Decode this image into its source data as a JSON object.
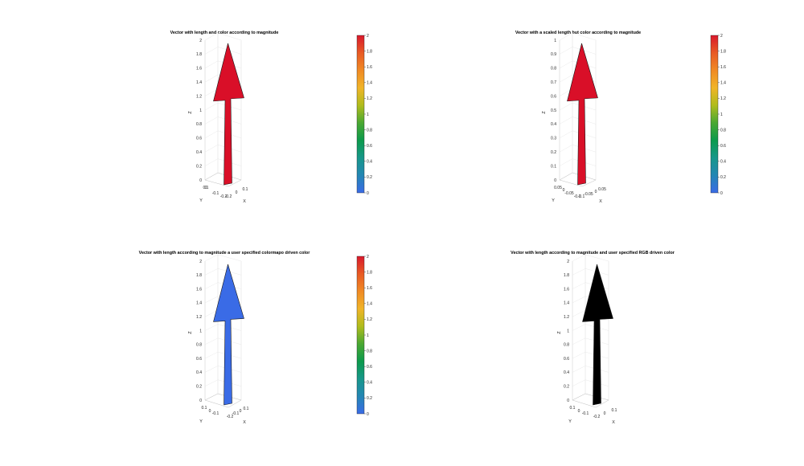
{
  "figure": {
    "background": "#ffffff"
  },
  "chart_data": [
    {
      "type": "3d-quiver",
      "title": "Vector with length and color according to magnitude",
      "xlabel": "X",
      "ylabel": "Y",
      "zlabel": "Z",
      "zlim": [
        0,
        2
      ],
      "z_ticks": [
        "0",
        "0.2",
        "0.4",
        "0.6",
        "0.8",
        "1",
        "1.2",
        "1.4",
        "1.6",
        "1.8",
        "2"
      ],
      "x_ticks": [
        "-0.2",
        "0",
        "0.1"
      ],
      "y_ticks": [
        "-0.2",
        "-0.1",
        "0",
        "0.1"
      ],
      "vector": {
        "origin": [
          0,
          0,
          0
        ],
        "direction": [
          0,
          0,
          1
        ],
        "magnitude": 2,
        "drawn_length": 2
      },
      "arrow_color": "#d90f28",
      "colorbar": {
        "clim": [
          0,
          2
        ],
        "ticks": [
          "0",
          "0.2",
          "0.4",
          "0.6",
          "0.8",
          "1",
          "1.2",
          "1.4",
          "1.6",
          "1.8",
          "2"
        ]
      }
    },
    {
      "type": "3d-quiver",
      "title": "Vector with a scaled length but color according to magnitude",
      "xlabel": "X",
      "ylabel": "Y",
      "zlabel": "Z",
      "zlim": [
        0,
        1
      ],
      "z_ticks": [
        "0",
        "0.1",
        "0.2",
        "0.3",
        "0.4",
        "0.5",
        "0.6",
        "0.7",
        "0.8",
        "0.9",
        "1"
      ],
      "x_ticks": [
        "-0.1",
        "-0.05",
        "0",
        "0.05"
      ],
      "y_ticks": [
        "-0.1",
        "-0.05",
        "0",
        "0.05"
      ],
      "vector": {
        "origin": [
          0,
          0,
          0
        ],
        "direction": [
          0,
          0,
          1
        ],
        "magnitude": 2,
        "drawn_length": 1
      },
      "arrow_color": "#d90f28",
      "colorbar": {
        "clim": [
          0,
          2
        ],
        "ticks": [
          "0",
          "0.2",
          "0.4",
          "0.6",
          "0.8",
          "1",
          "1.2",
          "1.4",
          "1.6",
          "1.8",
          "2"
        ]
      }
    },
    {
      "type": "3d-quiver",
      "title": "Vector with length according to magnitude a user specified colormapo driven color",
      "xlabel": "X",
      "ylabel": "Y",
      "zlabel": "Z",
      "zlim": [
        0,
        2
      ],
      "z_ticks": [
        "0",
        "0.2",
        "0.4",
        "0.6",
        "0.8",
        "1",
        "1.2",
        "1.4",
        "1.6",
        "1.8",
        "2"
      ],
      "x_ticks": [
        "-0.2",
        "-0.1",
        "0",
        "0.1"
      ],
      "y_ticks": [
        "-0.1",
        "0",
        "0.1"
      ],
      "vector": {
        "origin": [
          0,
          0,
          0
        ],
        "direction": [
          0,
          0,
          1
        ],
        "magnitude": 2,
        "drawn_length": 2
      },
      "arrow_color": "#3a6be6",
      "colorbar": {
        "clim": [
          0,
          2
        ],
        "ticks": [
          "0",
          "0.2",
          "0.4",
          "0.6",
          "0.8",
          "1",
          "1.2",
          "1.4",
          "1.6",
          "1.8",
          "2"
        ]
      }
    },
    {
      "type": "3d-quiver",
      "title": "Vector with length according to magnitude and user specified RGB driven color",
      "xlabel": "X",
      "ylabel": "Y",
      "zlabel": "Z",
      "zlim": [
        0,
        2
      ],
      "z_ticks": [
        "0",
        "0.2",
        "0.4",
        "0.6",
        "0.8",
        "1",
        "1.2",
        "1.4",
        "1.6",
        "1.8",
        "2"
      ],
      "x_ticks": [
        "-0.2",
        "0",
        "0.1"
      ],
      "y_ticks": [
        "-0.1",
        "0",
        "0.1"
      ],
      "vector": {
        "origin": [
          0,
          0,
          0
        ],
        "direction": [
          0,
          0,
          1
        ],
        "magnitude": 2,
        "drawn_length": 2
      },
      "arrow_color": "#000000",
      "colorbar": null
    }
  ],
  "colormap": [
    "#3a6be6",
    "#2386b4",
    "#17978a",
    "#0c9a4c",
    "#4aa832",
    "#b0bc1c",
    "#f0b428",
    "#f08a24",
    "#e85a24",
    "#d9192c"
  ]
}
